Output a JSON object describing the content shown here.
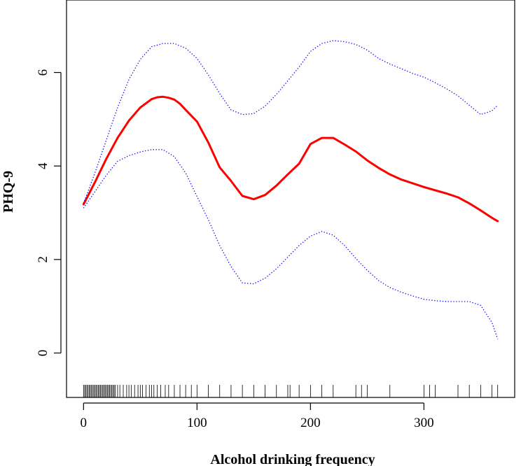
{
  "chart_data": {
    "type": "line",
    "title": "",
    "xlabel": "Alcohol drinking frequency",
    "ylabel": "PHQ-9",
    "xlim": [
      -15,
      380
    ],
    "ylim": [
      -0.95,
      7.55
    ],
    "x_ticks": [
      0,
      100,
      200,
      300
    ],
    "x_tick_labels": [
      "0",
      "100",
      "200",
      "300"
    ],
    "y_ticks": [
      0,
      2,
      4,
      6
    ],
    "y_tick_labels": [
      "0",
      "2",
      "4",
      "6"
    ],
    "grid": false,
    "legend": "none",
    "series": [
      {
        "name": "estimate",
        "style": "solid",
        "color": "#ff0000",
        "x": [
          0,
          10,
          20,
          30,
          40,
          50,
          60,
          65,
          70,
          75,
          80,
          85,
          90,
          100,
          110,
          120,
          130,
          140,
          150,
          160,
          170,
          180,
          190,
          200,
          210,
          220,
          230,
          240,
          250,
          260,
          270,
          280,
          290,
          300,
          310,
          320,
          330,
          340,
          350,
          360,
          365
        ],
        "y": [
          3.18,
          3.65,
          4.15,
          4.6,
          4.97,
          5.25,
          5.43,
          5.47,
          5.48,
          5.46,
          5.42,
          5.33,
          5.2,
          4.95,
          4.5,
          3.97,
          3.68,
          3.36,
          3.29,
          3.38,
          3.58,
          3.82,
          4.05,
          4.47,
          4.6,
          4.6,
          4.46,
          4.31,
          4.12,
          3.96,
          3.82,
          3.71,
          3.63,
          3.55,
          3.48,
          3.41,
          3.33,
          3.2,
          3.05,
          2.89,
          2.82
        ]
      },
      {
        "name": "upper 95% CI",
        "style": "dotted",
        "color": "#0000ff",
        "x": [
          0,
          10,
          20,
          30,
          40,
          50,
          60,
          70,
          80,
          90,
          100,
          110,
          120,
          130,
          140,
          150,
          160,
          170,
          180,
          190,
          200,
          210,
          220,
          230,
          240,
          250,
          260,
          270,
          280,
          290,
          300,
          310,
          320,
          330,
          340,
          350,
          360,
          365
        ],
        "y": [
          3.2,
          3.85,
          4.55,
          5.25,
          5.85,
          6.28,
          6.55,
          6.62,
          6.62,
          6.52,
          6.3,
          5.95,
          5.55,
          5.2,
          5.1,
          5.12,
          5.28,
          5.53,
          5.82,
          6.12,
          6.45,
          6.62,
          6.68,
          6.66,
          6.6,
          6.48,
          6.3,
          6.18,
          6.08,
          5.98,
          5.9,
          5.78,
          5.65,
          5.5,
          5.3,
          5.1,
          5.18,
          5.3
        ]
      },
      {
        "name": "lower 95% CI",
        "style": "dotted",
        "color": "#0000ff",
        "x": [
          0,
          10,
          20,
          30,
          40,
          50,
          60,
          70,
          80,
          90,
          100,
          110,
          120,
          130,
          140,
          150,
          160,
          170,
          180,
          190,
          200,
          210,
          220,
          230,
          240,
          250,
          260,
          270,
          280,
          290,
          300,
          310,
          320,
          330,
          340,
          350,
          360,
          365
        ],
        "y": [
          3.1,
          3.45,
          3.8,
          4.1,
          4.22,
          4.3,
          4.35,
          4.35,
          4.2,
          3.85,
          3.35,
          2.85,
          2.3,
          1.85,
          1.5,
          1.48,
          1.6,
          1.8,
          2.05,
          2.3,
          2.5,
          2.6,
          2.52,
          2.3,
          2.02,
          1.77,
          1.55,
          1.4,
          1.3,
          1.22,
          1.15,
          1.12,
          1.1,
          1.1,
          1.1,
          1.02,
          0.65,
          0.3
        ]
      }
    ],
    "rug_x": [
      0,
      1,
      2,
      3,
      4,
      5,
      6,
      7,
      8,
      9,
      10,
      11,
      12,
      13,
      14,
      15,
      16,
      17,
      18,
      19,
      20,
      21,
      22,
      23,
      24,
      25,
      26,
      27,
      28,
      30,
      32,
      35,
      38,
      40,
      42,
      45,
      48,
      50,
      52,
      55,
      58,
      60,
      62,
      65,
      68,
      72,
      75,
      80,
      85,
      90,
      95,
      100,
      110,
      120,
      130,
      140,
      150,
      160,
      170,
      180,
      182,
      190,
      200,
      210,
      220,
      240,
      245,
      250,
      270,
      300,
      305,
      310,
      330,
      340,
      350,
      360,
      365
    ]
  }
}
